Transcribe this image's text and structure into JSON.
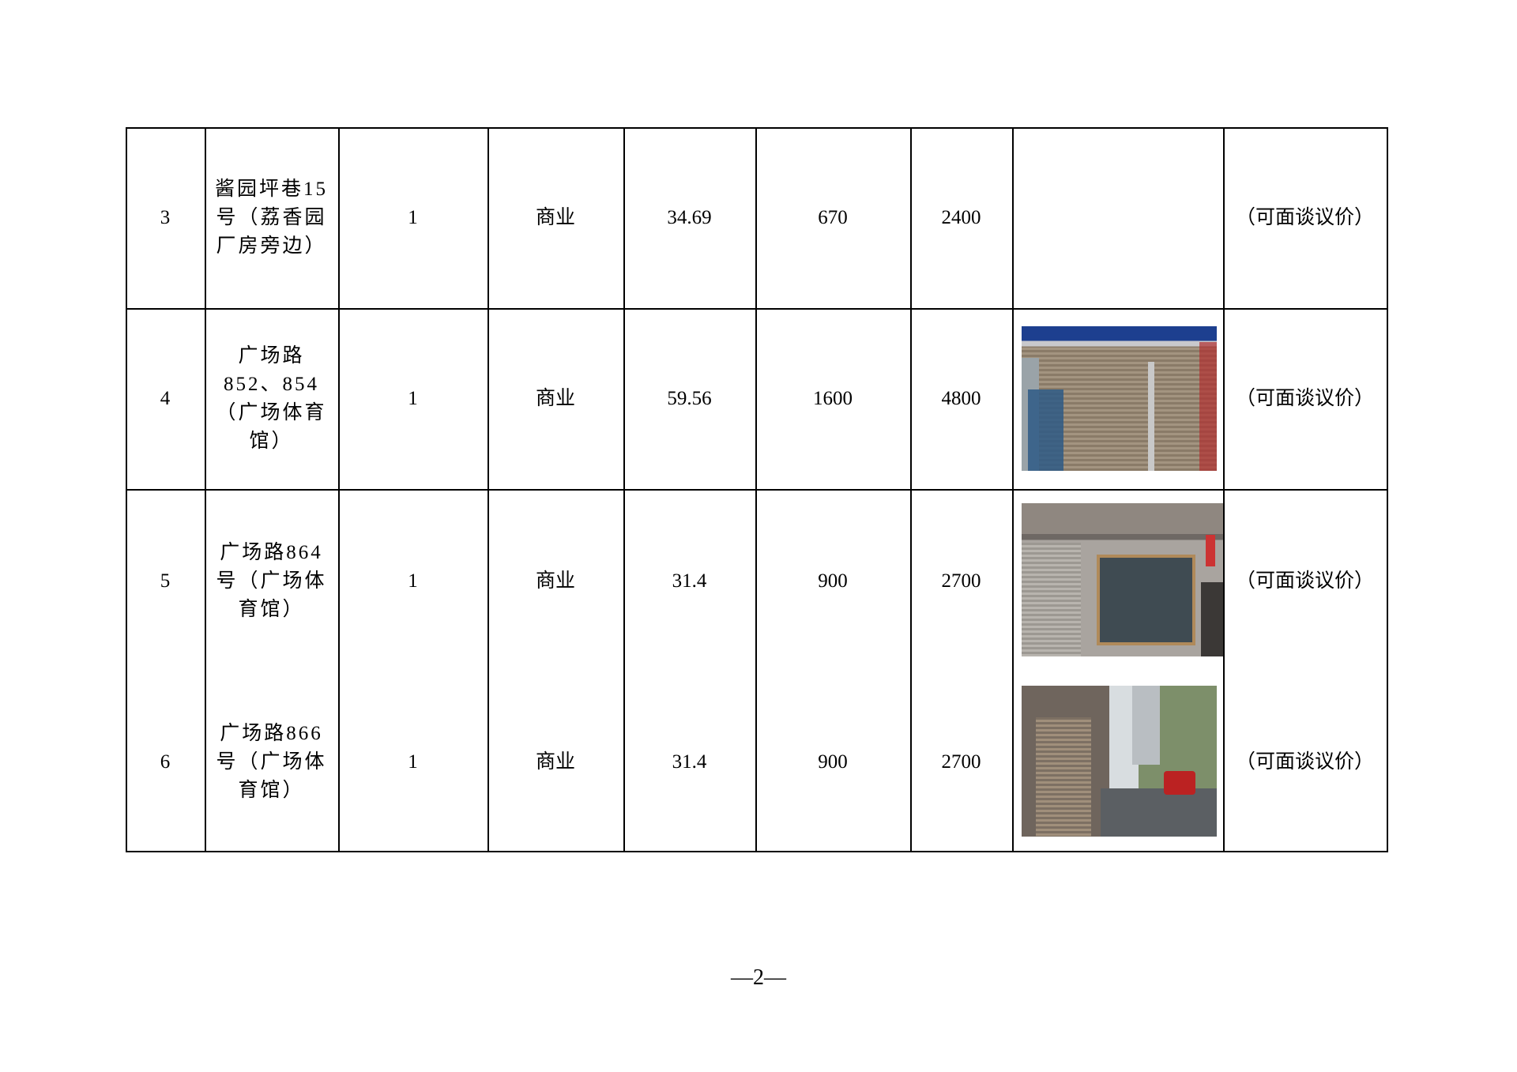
{
  "rows": [
    {
      "no": "3",
      "address": "酱园坪巷15号（荔香园厂房旁边）",
      "count": "1",
      "use": "商业",
      "area": "34.69",
      "rent": "670",
      "deposit": "2400",
      "photo": "",
      "note": "（可面谈议价）"
    },
    {
      "no": "4",
      "address": "广场路852、854（广场体育馆）",
      "count": "1",
      "use": "商业",
      "area": "59.56",
      "rent": "1600",
      "deposit": "4800",
      "photo": "storefront-photo-shutters-blue-sign",
      "note": "（可面谈议价）"
    },
    {
      "no": "5",
      "address": "广场路864号（广场体育馆）",
      "count": "1",
      "use": "商业",
      "area": "31.4",
      "rent": "900",
      "deposit": "2700",
      "photo": "storefront-photo-glass-doors",
      "note": "（可面谈议价）"
    },
    {
      "no": "6",
      "address": "广场路866号（广场体育馆）",
      "count": "1",
      "use": "商业",
      "area": "31.4",
      "rent": "900",
      "deposit": "2700",
      "photo": "storefront-photo-street-view",
      "note": "（可面谈议价）"
    }
  ],
  "page_number": "—2—"
}
